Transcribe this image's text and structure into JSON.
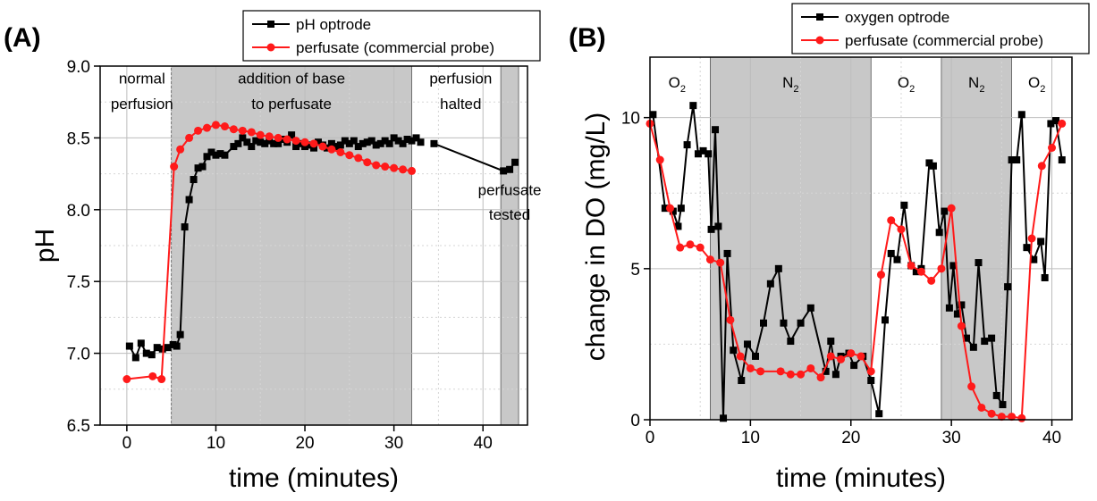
{
  "chart_data": [
    {
      "panel_label": "(A)",
      "type": "line",
      "xlabel": "time (minutes)",
      "ylabel": "pH",
      "xlim": [
        -3,
        45
      ],
      "ylim": [
        6.5,
        9.0
      ],
      "xticks": [
        0,
        10,
        20,
        30,
        40
      ],
      "yticks": [
        6.5,
        7.0,
        7.5,
        8.0,
        8.5,
        9.0
      ],
      "ytick_labels": [
        "6.5",
        "7.0",
        "7.5",
        "8.0",
        "8.5",
        "9.0"
      ],
      "grid": true,
      "legend_position": "top-right",
      "shaded_regions": [
        [
          5,
          32
        ],
        [
          42,
          44
        ]
      ],
      "annotations": [
        {
          "lines": [
            "normal",
            "perfusion"
          ],
          "x": 1.7,
          "y": [
            8.88,
            8.7
          ]
        },
        {
          "lines": [
            "addition of base",
            "to perfusate"
          ],
          "x": 18.5,
          "y": [
            8.88,
            8.7
          ]
        },
        {
          "lines": [
            "perfusion",
            "halted"
          ],
          "x": 37.5,
          "y": [
            8.88,
            8.7
          ]
        },
        {
          "lines": [
            "perfusate",
            "tested"
          ],
          "x": 43.0,
          "y": [
            8.1,
            7.93
          ]
        }
      ],
      "series": [
        {
          "name": "pH optrode",
          "color": "#000000",
          "marker": "square",
          "x": [
            0.3,
            1,
            1.6,
            2.2,
            2.8,
            3.4,
            4,
            4.6,
            5.2,
            5.6,
            6,
            6.5,
            7,
            7.5,
            8,
            8.5,
            9,
            9.5,
            10,
            10.5,
            11,
            12,
            12.5,
            13,
            13.5,
            14,
            14.5,
            15,
            15.5,
            16,
            16.5,
            17,
            17.5,
            18,
            18.5,
            19,
            19.5,
            20,
            20.5,
            21,
            21.5,
            22,
            22.5,
            23,
            23.5,
            24,
            24.5,
            25,
            25.5,
            26,
            26.5,
            27,
            27.5,
            28,
            28.5,
            29,
            29.5,
            30,
            30.5,
            31,
            31.5,
            32,
            32.5,
            33
          ],
          "y": [
            7.05,
            6.97,
            7.07,
            7.0,
            6.99,
            7.04,
            7.03,
            7.04,
            7.06,
            7.05,
            7.13,
            7.88,
            8.07,
            8.21,
            8.29,
            8.3,
            8.37,
            8.4,
            8.38,
            8.39,
            8.38,
            8.44,
            8.46,
            8.5,
            8.47,
            8.44,
            8.48,
            8.47,
            8.46,
            8.48,
            8.46,
            8.46,
            8.49,
            8.47,
            8.52,
            8.44,
            8.46,
            8.44,
            8.45,
            8.43,
            8.47,
            8.45,
            8.43,
            8.46,
            8.44,
            8.45,
            8.48,
            8.46,
            8.48,
            8.44,
            8.46,
            8.47,
            8.48,
            8.45,
            8.46,
            8.48,
            8.46,
            8.5,
            8.48,
            8.46,
            8.49,
            8.48,
            8.5,
            8.47
          ]
        },
        {
          "name": "perfusate (commercial probe)",
          "color": "#ff1a1a",
          "marker": "circle",
          "x": [
            0,
            2.9,
            3.9,
            5.3,
            6,
            7,
            8,
            9,
            10,
            11,
            12,
            13,
            14,
            15,
            16,
            17,
            18,
            19,
            20,
            21,
            22,
            23,
            24,
            25,
            26,
            27,
            28,
            29,
            30,
            31,
            32
          ],
          "y": [
            6.82,
            6.84,
            6.82,
            8.3,
            8.42,
            8.5,
            8.55,
            8.57,
            8.59,
            8.58,
            8.56,
            8.55,
            8.54,
            8.52,
            8.51,
            8.5,
            8.49,
            8.48,
            8.47,
            8.46,
            8.44,
            8.42,
            8.4,
            8.38,
            8.36,
            8.33,
            8.31,
            8.3,
            8.29,
            8.28,
            8.27
          ]
        },
        {
          "name": "pH optrode",
          "color": "#000000",
          "marker": "square",
          "x": [
            34.5,
            42.3,
            43.0,
            43.6
          ],
          "y": [
            8.46,
            8.27,
            8.28,
            8.33
          ]
        }
      ]
    },
    {
      "panel_label": "(B)",
      "type": "line",
      "xlabel": "time (minutes)",
      "ylabel": "change in DO (mg/L)",
      "xlim": [
        0,
        42
      ],
      "ylim": [
        0,
        12
      ],
      "xticks": [
        0,
        10,
        20,
        30,
        40
      ],
      "yticks": [
        0,
        5,
        10
      ],
      "ytick_labels": [
        "0",
        "5",
        "10"
      ],
      "grid": true,
      "legend_position": "top-right",
      "shaded_regions": [
        [
          6,
          22
        ],
        [
          29,
          36
        ]
      ],
      "annotations": [
        {
          "text": "O",
          "sub": "2",
          "x": 2.7,
          "y": 11.0
        },
        {
          "text": "N",
          "sub": "2",
          "x": 14.0,
          "y": 11.0
        },
        {
          "text": "O",
          "sub": "2",
          "x": 25.5,
          "y": 11.0
        },
        {
          "text": "N",
          "sub": "2",
          "x": 32.5,
          "y": 11.0
        },
        {
          "text": "O",
          "sub": "2",
          "x": 38.5,
          "y": 11.0
        }
      ],
      "series": [
        {
          "name": "oxygen optrode",
          "color": "#000000",
          "marker": "square",
          "x": [
            0.3,
            1.5,
            2.3,
            2.8,
            3.1,
            3.7,
            4.3,
            4.8,
            5.3,
            5.8,
            6.1,
            6.5,
            6.8,
            7.3,
            7.7,
            8.3,
            9.1,
            9.7,
            10.5,
            11.3,
            12.0,
            12.8,
            13.3,
            14.0,
            15.0,
            16.0,
            17.5,
            18.0,
            18.5,
            19.0,
            19.8,
            20.3,
            21.2,
            22.0,
            22.8,
            23.4,
            24.0,
            24.6,
            25.3,
            26.0,
            26.5,
            27.0,
            27.8,
            28.2,
            28.8,
            29.3,
            29.8,
            30.2,
            30.6,
            31.0,
            31.5,
            32.2,
            32.7,
            33.3,
            34.0,
            34.5,
            35.1,
            35.6,
            36.0,
            36.5,
            37.0,
            37.5,
            38.2,
            38.9,
            39.3,
            39.9,
            40.4,
            41.0
          ],
          "y": [
            10.1,
            7.0,
            6.9,
            6.4,
            7.0,
            9.1,
            10.4,
            8.8,
            8.9,
            8.8,
            6.3,
            9.6,
            6.4,
            0.05,
            5.5,
            2.3,
            1.3,
            2.5,
            2.1,
            3.2,
            4.5,
            5.0,
            3.2,
            2.6,
            3.2,
            3.7,
            1.6,
            2.6,
            1.5,
            2.1,
            2.2,
            1.8,
            2.1,
            1.3,
            0.2,
            3.3,
            5.5,
            5.3,
            7.1,
            5.1,
            4.9,
            5.0,
            8.5,
            8.4,
            6.2,
            6.9,
            3.7,
            5.1,
            3.5,
            3.8,
            2.7,
            2.4,
            5.2,
            2.6,
            2.7,
            0.8,
            0.5,
            4.4,
            8.6,
            8.6,
            10.1,
            5.7,
            5.3,
            5.9,
            4.7,
            9.8,
            9.9,
            8.6
          ]
        },
        {
          "name": "perfusate (commercial probe)",
          "color": "#ff1a1a",
          "marker": "circle",
          "x": [
            0,
            1,
            2,
            3,
            4,
            5,
            6,
            7,
            8,
            9,
            10,
            11,
            13,
            14,
            15,
            16,
            17,
            18,
            19,
            20,
            21,
            22,
            23,
            24,
            25,
            26,
            27,
            28,
            29,
            30,
            31,
            32,
            33,
            34,
            35,
            36,
            37,
            38,
            39,
            40,
            41
          ],
          "y": [
            9.8,
            8.6,
            7.0,
            5.7,
            5.8,
            5.7,
            5.3,
            5.2,
            3.3,
            2.1,
            1.7,
            1.6,
            1.6,
            1.5,
            1.5,
            1.7,
            1.4,
            2.1,
            2.0,
            2.2,
            2.1,
            1.6,
            4.8,
            6.6,
            6.3,
            5.1,
            4.9,
            4.6,
            5.0,
            7.0,
            3.1,
            1.1,
            0.4,
            0.2,
            0.1,
            0.1,
            0.05,
            6.0,
            8.4,
            9.0,
            9.8
          ]
        }
      ]
    }
  ]
}
